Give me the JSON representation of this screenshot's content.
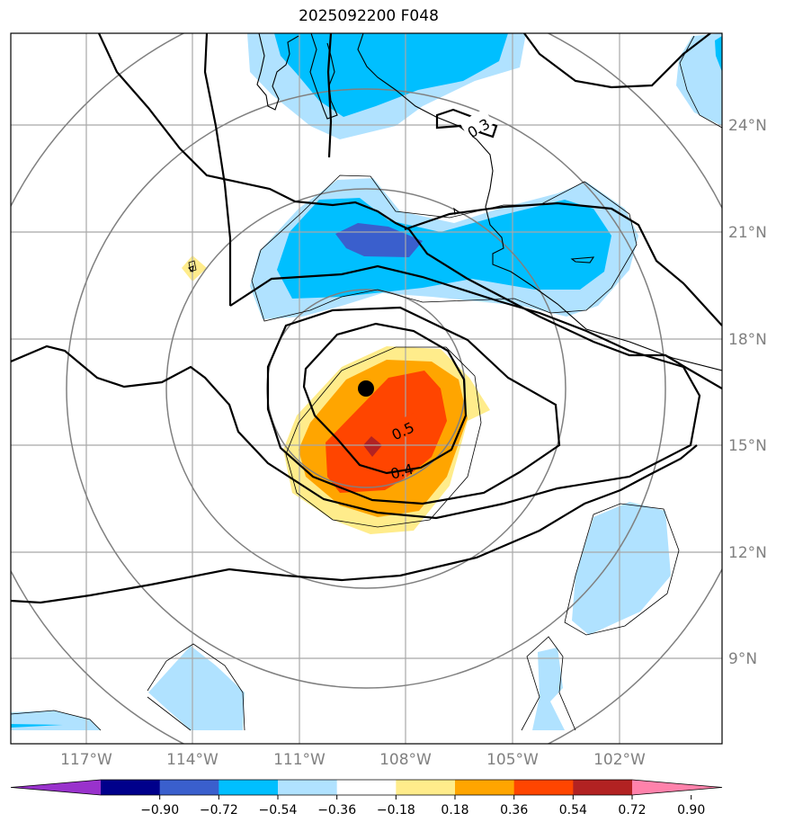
{
  "title": "2025092200 F048",
  "chart_data": {
    "type": "heatmap",
    "title": "2025092200 F048",
    "lon_labels": [
      "117°W",
      "114°W",
      "111°W",
      "108°W",
      "105°W",
      "102°W"
    ],
    "lat_labels": [
      "24°N",
      "21°N",
      "18°N",
      "15°N",
      "12°N",
      "9°N"
    ],
    "lon_range": [
      -119.1,
      -99.1
    ],
    "lat_range": [
      6.5,
      26.5
    ],
    "grid": true,
    "storm_center": {
      "lon": -109.0,
      "lat": 16.6
    },
    "contour_labels": [
      "0.3",
      "0.5",
      "0.4"
    ],
    "colorbar": {
      "ticks": [
        "−0.90",
        "−0.72",
        "−0.54",
        "−0.36",
        "−0.18",
        "0.18",
        "0.36",
        "0.54",
        "0.72",
        "0.90"
      ],
      "levels": [
        -0.9,
        -0.72,
        -0.54,
        -0.36,
        -0.18,
        0.18,
        0.36,
        0.54,
        0.72,
        0.9
      ],
      "colors": [
        "#9932cc",
        "#00008b",
        "#3a5fcd",
        "#00bfff",
        "#b0e2ff",
        "#ffffff",
        "#ffec8b",
        "#ffa500",
        "#ff4500",
        "#b22222",
        "#ff82ab"
      ],
      "extend": "both"
    }
  }
}
